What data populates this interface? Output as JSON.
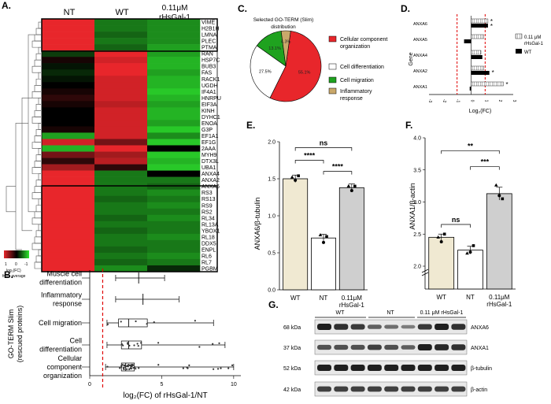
{
  "panels": {
    "A": "A.",
    "B": "B.",
    "C": "C.",
    "D": "D.",
    "E": "E.",
    "F": "F.",
    "G": "G."
  },
  "colors": {
    "red": "#e8262b",
    "green": "#1fa21f",
    "sky": "#6ec1e4",
    "tan": "#c9a86a",
    "beige": "#f0e9d2",
    "grey": "#cfcfcf"
  },
  "heatmap": {
    "columns": [
      "NT",
      "WT",
      "0.11μM",
      "rHsGal-1"
    ],
    "genes": [
      "VIME",
      "H2B1H",
      "LMNA",
      "PLEC",
      "PTMA",
      "RAN",
      "HSP7C",
      "BUB3",
      "FAS",
      "RACK1",
      "UGDH",
      "IF4A1",
      "HNRPU",
      "EIF3A",
      "KINH",
      "DYHC1",
      "ENOA",
      "G3P",
      "EF1A1",
      "EF1G",
      "2AAA",
      "MYH9",
      "DTX3L",
      "UBA1",
      "ANXA4",
      "ANXA2",
      "ANXA6",
      "RS3",
      "RS13",
      "RS9",
      "RS2",
      "RL34",
      "RL13A",
      "YBOX1",
      "RL18",
      "DDX5",
      "ENPL",
      "RL6",
      "RL7",
      "PGBM"
    ],
    "legend_ticks": [
      "1",
      "0",
      "-1"
    ],
    "legend_label": [
      "log₂(FC)",
      "from average"
    ]
  },
  "panel_B": {
    "ylabel": [
      "GO-TERM Slim",
      "(rescued proteins)"
    ],
    "categories": [
      [
        "Muscle cell",
        "differentiation"
      ],
      [
        "Inflammatory",
        "response"
      ],
      [
        "Cell migration"
      ],
      [
        "Cell",
        "differentiation"
      ],
      [
        "Cellular",
        "component",
        "organization"
      ]
    ],
    "x_ticks": [
      "0",
      "5",
      "10"
    ],
    "xlabel": "log₂(FC) of rHsGal-1/NT"
  },
  "panel_C": {
    "title": [
      "Selected GO-TERM (Slim)",
      "distribution"
    ],
    "legend": [
      [
        "Cellular component",
        "organization"
      ],
      [
        "Cell differentiation"
      ],
      [
        "Cell migration"
      ],
      [
        "Inflammatory",
        "response"
      ]
    ],
    "pct_labels": [
      "55.1%",
      "27.5%",
      "13.1%",
      "4.3%"
    ]
  },
  "panel_D": {
    "genes": [
      "ANXA6",
      "ANXA5",
      "ANXA4",
      "ANXA2",
      "ANXA1"
    ],
    "ylabel": "Gene",
    "x_ticks": [
      "-3",
      "-2",
      "-1",
      "0",
      "1",
      "2",
      "3"
    ],
    "xlabel": "Log₂(FC)",
    "legend": [
      [
        "0.11 μM",
        "rHsGal-1"
      ],
      [
        "WT"
      ]
    ],
    "stars": [
      "*",
      "*",
      "*",
      "*"
    ]
  },
  "panel_E": {
    "ylabel": "ANXA6/β-tubulin",
    "y_ticks": [
      "0.0",
      "0.5",
      "1.0",
      "1.5",
      "2.0"
    ],
    "groups": [
      [
        "WT"
      ],
      [
        "NT"
      ],
      [
        "0.11μM",
        "rHsGal-1"
      ]
    ],
    "sig": [
      "ns",
      "****",
      "****"
    ]
  },
  "panel_F": {
    "ylabel": "ANXA1/β-actin",
    "y_ticks": [
      "2.0",
      "2.5",
      "3.0",
      "3.5",
      "4.0"
    ],
    "groups": [
      [
        "WT"
      ],
      [
        "NT"
      ],
      [
        "0.11μM",
        "rHsGal-1"
      ]
    ],
    "sig": [
      "**",
      "***",
      "ns"
    ]
  },
  "panel_G": {
    "groups": [
      "WT",
      "NT",
      "0.11 μM rHsGal-1"
    ],
    "sizes": [
      "68 kDa",
      "37 kDa",
      "52 kDa",
      "42 kDa"
    ],
    "proteins": [
      "ANXA6",
      "ANXA1",
      "β-tubulin",
      "β-actin"
    ]
  },
  "chart_data": [
    {
      "type": "heatmap",
      "title": "",
      "columns": [
        "NT",
        "WT",
        "0.11μM rHsGal-1"
      ],
      "rows": [
        "VIME",
        "H2B1H",
        "LMNA",
        "PLEC",
        "PTMA",
        "RAN",
        "HSP7C",
        "BUB3",
        "FAS",
        "RACK1",
        "UGDH",
        "IF4A1",
        "HNRPU",
        "EIF3A",
        "KINH",
        "DYHC1",
        "ENOA",
        "G3P",
        "EF1A1",
        "EF1G",
        "2AAA",
        "MYH9",
        "DTX3L",
        "UBA1",
        "ANXA4",
        "ANXA2",
        "ANXA6",
        "RS3",
        "RS13",
        "RS9",
        "RS2",
        "RL34",
        "RL13A",
        "YBOX1",
        "RL18",
        "DDX5",
        "ENPL",
        "RL6",
        "RL7",
        "PGBM"
      ],
      "values": [
        [
          1,
          -0.6,
          -0.7
        ],
        [
          1,
          -0.6,
          -0.7
        ],
        [
          1,
          -0.5,
          -0.7
        ],
        [
          1,
          -0.6,
          -0.7
        ],
        [
          1,
          -0.5,
          -0.8
        ],
        [
          -0.3,
          1,
          -0.8
        ],
        [
          0.1,
          0.9,
          -0.9
        ],
        [
          -0.1,
          1,
          -0.9
        ],
        [
          -0.2,
          1,
          -0.8
        ],
        [
          -0.1,
          0.9,
          -0.9
        ],
        [
          0,
          0.9,
          -0.9
        ],
        [
          0.1,
          0.9,
          -1
        ],
        [
          0.2,
          0.9,
          -0.9
        ],
        [
          0.1,
          0.8,
          -0.8
        ],
        [
          0,
          0.9,
          -0.9
        ],
        [
          0,
          0.9,
          -0.9
        ],
        [
          0,
          0.9,
          -0.8
        ],
        [
          0.1,
          0.9,
          -1
        ],
        [
          -0.8,
          0.9,
          -0.7
        ],
        [
          0.9,
          0.5,
          -1
        ],
        [
          -0.9,
          1,
          0
        ],
        [
          0.5,
          0.7,
          -1
        ],
        [
          0.2,
          0.8,
          -0.9
        ],
        [
          0.7,
          0.2,
          -1
        ],
        [
          1,
          -0.6,
          0
        ],
        [
          1,
          -0.6,
          -0.6
        ],
        [
          1,
          -0.6,
          -0.5
        ],
        [
          1,
          -0.6,
          -0.7
        ],
        [
          1,
          -0.5,
          -0.6
        ],
        [
          1,
          -0.6,
          -0.7
        ],
        [
          1,
          -0.6,
          -0.6
        ],
        [
          1,
          -0.5,
          -0.7
        ],
        [
          1,
          -0.6,
          -0.6
        ],
        [
          1,
          -0.5,
          -0.6
        ],
        [
          1,
          -0.6,
          -0.7
        ],
        [
          1,
          -0.6,
          -0.6
        ],
        [
          1,
          -0.5,
          -0.6
        ],
        [
          1,
          -0.6,
          -0.7
        ],
        [
          1,
          -0.5,
          -0.6
        ],
        [
          1,
          -0.7,
          -0.2
        ]
      ],
      "legend_range": [
        -1,
        1
      ]
    },
    {
      "type": "box",
      "categories": [
        "Muscle cell differentiation",
        "Inflammatory response",
        "Cell migration",
        "Cell differentiation",
        "Cellular component organization"
      ],
      "stats": [
        [
          1.8,
          3.4,
          3.4,
          3.4,
          5.2
        ],
        [
          1.8,
          3.7,
          3.7,
          3.7,
          6.2
        ],
        [
          1.2,
          2.0,
          2.7,
          4.0,
          8.6
        ],
        [
          1.2,
          2.2,
          2.7,
          3.6,
          9.4
        ],
        [
          1.1,
          2.2,
          2.5,
          3.1,
          10
        ]
      ],
      "xlabel": "log₂(FC) of rHsGal-1/NT",
      "xlim": [
        0,
        10.5
      ],
      "reference_line": 0.9
    },
    {
      "type": "pie",
      "title": "Selected GO-TERM (Slim) distribution",
      "labels": [
        "Cellular component organization",
        "Cell differentiation",
        "Cell migration",
        "Inflammatory response"
      ],
      "values": [
        55.1,
        27.5,
        13.1,
        4.3
      ]
    },
    {
      "type": "bar",
      "orientation": "horizontal",
      "categories": [
        "ANXA6",
        "ANXA5",
        "ANXA4",
        "ANXA2",
        "ANXA1"
      ],
      "series": [
        {
          "name": "0.11 μM rHsGal-1",
          "values": [
            1.2,
            0.9,
            0.7,
            0.9,
            2.3
          ]
        },
        {
          "name": "WT",
          "values": [
            1.2,
            -0.5,
            0.8,
            1.3,
            -0.1
          ]
        }
      ],
      "xlabel": "Log₂(FC)",
      "ylabel": "Gene",
      "xlim": [
        -3,
        3
      ],
      "reference_lines": [
        -1,
        1
      ]
    },
    {
      "type": "bar",
      "categories": [
        "WT",
        "NT",
        "0.11μM rHsGal-1"
      ],
      "values": [
        1.5,
        0.7,
        1.38
      ],
      "errors": [
        0.05,
        0.05,
        0.05
      ],
      "points": [
        [
          1.52,
          1.48,
          1.54
        ],
        [
          0.74,
          0.64,
          0.72
        ],
        [
          1.4,
          1.34,
          1.4
        ]
      ],
      "ylabel": "ANXA6/β-tubulin",
      "ylim": [
        0,
        2
      ]
    },
    {
      "type": "bar",
      "categories": [
        "WT",
        "NT",
        "0.11μM rHsGal-1"
      ],
      "values": [
        2.45,
        2.25,
        3.13
      ],
      "errors": [
        0.05,
        0.06,
        0.1
      ],
      "points": [
        [
          2.45,
          2.38,
          2.5
        ],
        [
          2.2,
          2.22,
          2.32
        ],
        [
          3.26,
          3.1,
          3.05
        ]
      ],
      "ylabel": "ANXA1/β-actin",
      "ylim": [
        2,
        4
      ],
      "y_axis_break": true
    }
  ]
}
